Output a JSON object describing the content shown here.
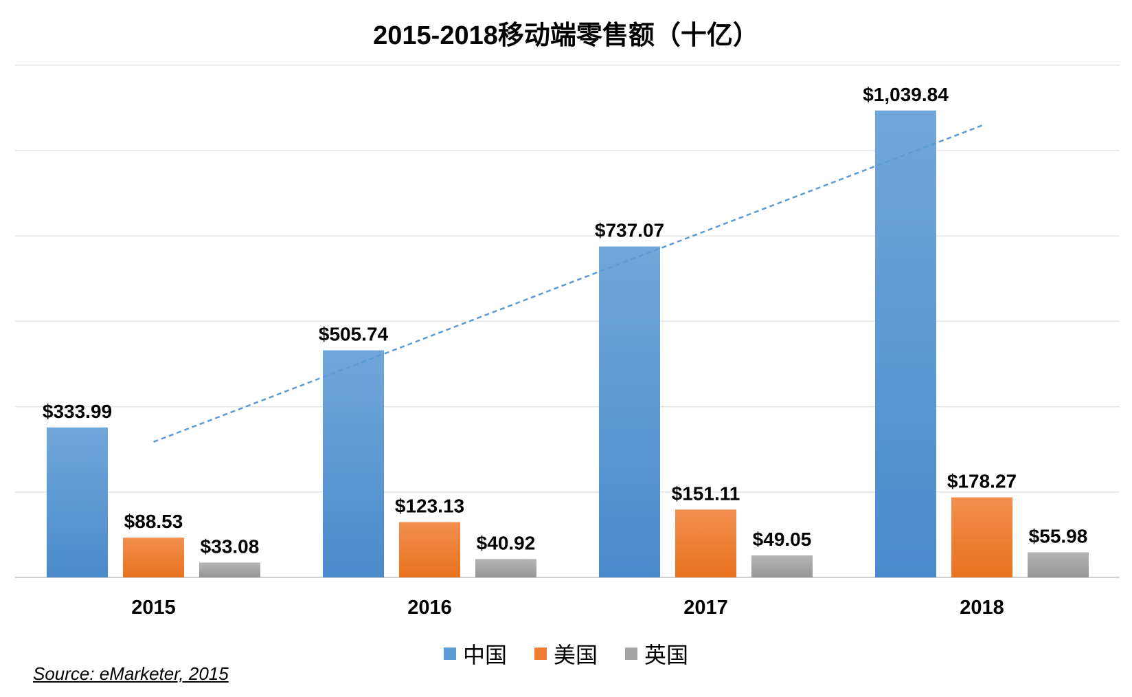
{
  "chart_data": {
    "type": "bar",
    "title": "2015-2018移动端零售额（十亿）",
    "categories": [
      "2015",
      "2016",
      "2017",
      "2018"
    ],
    "series": [
      {
        "name": "中国",
        "values": [
          333.99,
          505.74,
          737.07,
          1039.84
        ],
        "labels": [
          "$333.99",
          "$505.74",
          "$737.07",
          "$1,039.84"
        ],
        "color": "#5b9bd5"
      },
      {
        "name": "美国",
        "values": [
          88.53,
          123.13,
          151.11,
          178.27
        ],
        "labels": [
          "$88.53",
          "$123.13",
          "$151.11",
          "$178.27"
        ],
        "color": "#ed7d31"
      },
      {
        "name": "英国",
        "values": [
          33.08,
          40.92,
          49.05,
          55.98
        ],
        "labels": [
          "$33.08",
          "$40.92",
          "$49.05",
          "$55.98"
        ],
        "color": "#a5a5a5"
      }
    ],
    "trendline": {
      "series": "中国",
      "style": "dashed",
      "color": "#5b9bd5"
    },
    "xlabel": "",
    "ylabel": "",
    "ylim": [
      0,
      1200
    ],
    "grid": true,
    "legend": "bottom",
    "source": "Source: eMarketer, 2015"
  }
}
